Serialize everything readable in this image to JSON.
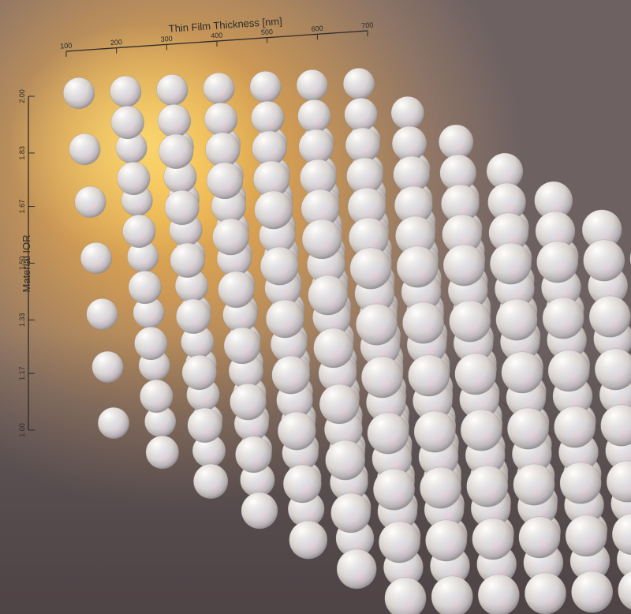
{
  "chart_data": {
    "type": "scatter3d",
    "render_style": "iridescent thin-film spheres",
    "x_axis": {
      "label": "Thin Film Thickness [nm]",
      "ticks": [
        100,
        200,
        300,
        400,
        500,
        600,
        700
      ],
      "tick_labels": [
        "100",
        "200",
        "300",
        "400",
        "500",
        "600",
        "700"
      ],
      "range": [
        100,
        700
      ]
    },
    "y_axis": {
      "label": "Material IOR",
      "ticks": [
        1.0,
        1.17,
        1.33,
        1.5,
        1.67,
        1.83,
        2.0
      ],
      "tick_labels": [
        "1.00",
        "1.17",
        "1.33",
        "1.50",
        "1.67",
        "1.83",
        "2.00"
      ],
      "range": [
        1.0,
        2.0
      ]
    },
    "z_axis": {
      "label": "",
      "range": [
        0,
        1
      ],
      "tick_labels_visible": false
    },
    "grid": {
      "x_values": [
        100,
        200,
        300,
        400,
        500,
        600,
        700
      ],
      "y_values": [
        1.0,
        1.17,
        1.33,
        1.5,
        1.67,
        1.83,
        2.0
      ],
      "z_values": [
        0,
        0.167,
        0.333,
        0.5,
        0.667,
        0.833,
        1.0
      ]
    },
    "colors": {
      "sphere_base": "#e6e1dd",
      "sphere_highlight": "#ffffff",
      "sphere_shadow": "#8c8482",
      "iridescent_tints": [
        "#f3d6ea",
        "#d7e3f7",
        "#f6ecd3"
      ]
    }
  }
}
